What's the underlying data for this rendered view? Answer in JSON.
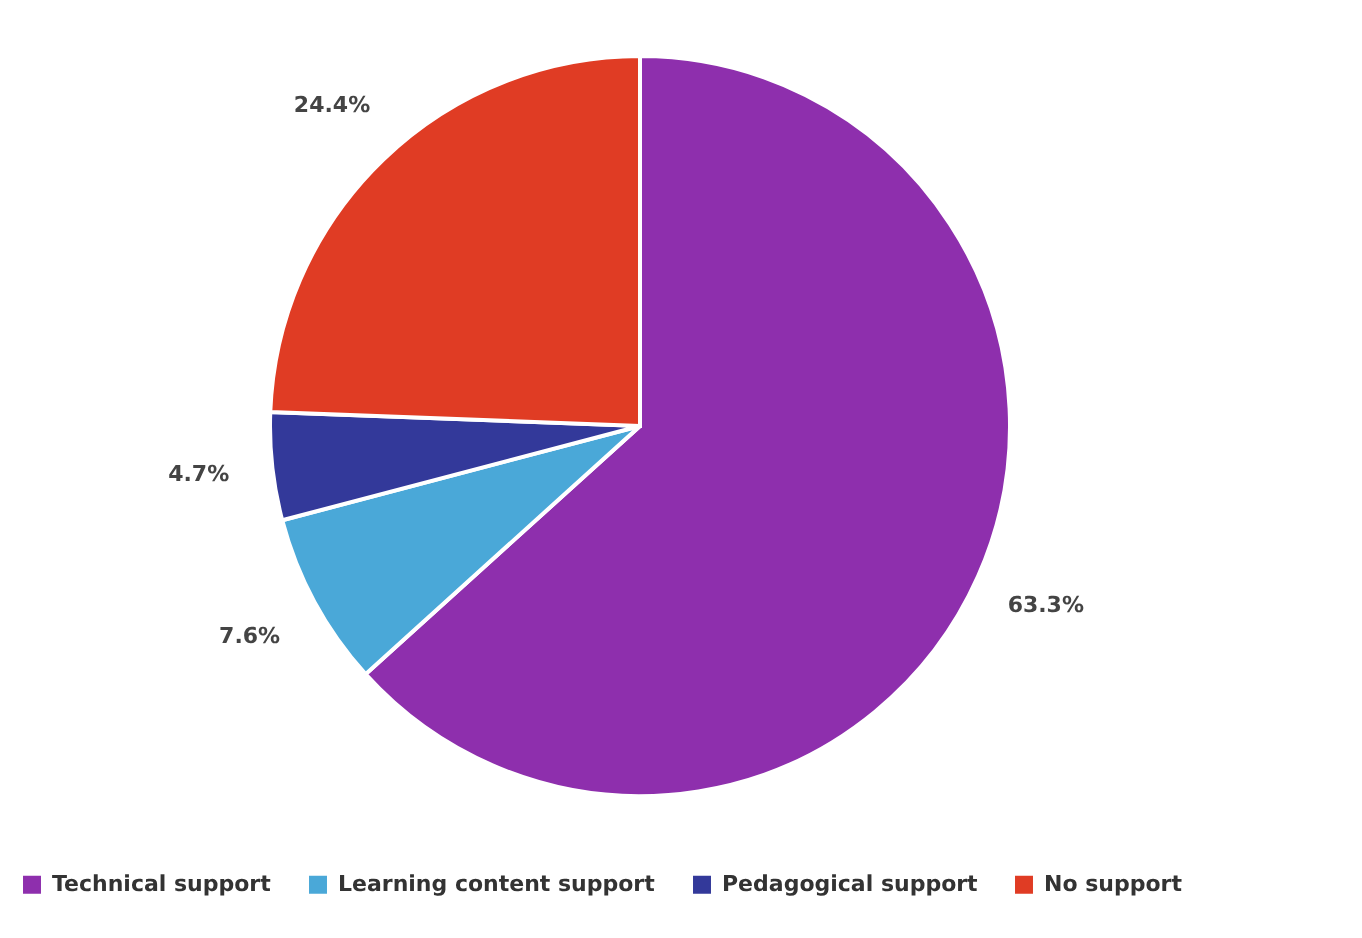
{
  "chart_data": {
    "type": "pie",
    "categories": [
      "Technical support",
      "Learning content support",
      "Pedagogical support",
      "No support"
    ],
    "values": [
      63.3,
      7.6,
      4.7,
      24.4
    ],
    "colors": [
      "#8e2fad",
      "#4aa8d8",
      "#33399a",
      "#e03c24"
    ],
    "value_labels": [
      "63.3%",
      "7.6%",
      "4.7%",
      "24.4%"
    ],
    "legend": "bottom"
  }
}
